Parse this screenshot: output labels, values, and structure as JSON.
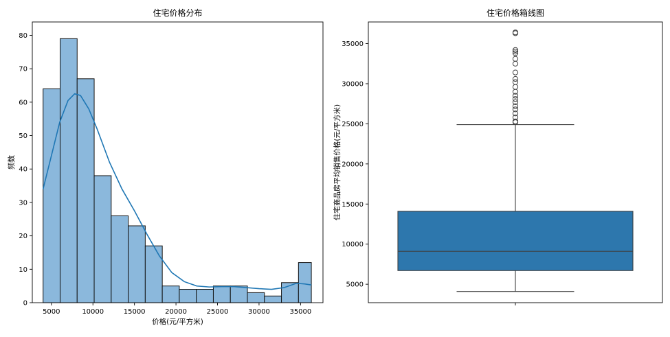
{
  "chart_data": [
    {
      "type": "histogram",
      "title": "住宅价格分布",
      "xlabel": "价格(元/平方米)",
      "ylabel": "频数",
      "xlim": [
        2700,
        37700
      ],
      "ylim": [
        0,
        84
      ],
      "xticks": [
        5000,
        10000,
        15000,
        20000,
        25000,
        30000,
        35000
      ],
      "yticks": [
        0,
        10,
        20,
        30,
        40,
        50,
        60,
        70,
        80
      ],
      "bins": [
        4000,
        6050,
        8100,
        10150,
        12200,
        14250,
        16300,
        18350,
        20400,
        22450,
        24500,
        26550,
        28600,
        30650,
        32700,
        34750,
        36300
      ],
      "counts": [
        64,
        79,
        67,
        38,
        26,
        23,
        17,
        5,
        4,
        4,
        5,
        5,
        3,
        2,
        6,
        12
      ],
      "bar_color": "#8bb8dc",
      "kde": {
        "color": "#1f77b4",
        "x": [
          4000,
          5000,
          6000,
          7000,
          7800,
          8500,
          9500,
          10500,
          12000,
          13500,
          15000,
          16500,
          18000,
          19500,
          21000,
          22500,
          24000,
          25500,
          27000,
          28500,
          30000,
          31500,
          33000,
          34500,
          35500,
          36300
        ],
        "y": [
          34,
          44,
          54,
          60.5,
          62.5,
          62,
          58,
          52,
          42,
          34,
          27.5,
          20.5,
          14,
          9,
          6.3,
          5,
          4.7,
          4.8,
          4.8,
          4.5,
          4.2,
          4,
          4.5,
          5.8,
          5.6,
          5.3
        ]
      }
    },
    {
      "type": "box",
      "title": "住宅价格箱线图",
      "xlabel": "",
      "ylabel": "住宅商品房平均销售价格(元/平方米)",
      "ylim": [
        2700,
        37700
      ],
      "yticks": [
        5000,
        10000,
        15000,
        20000,
        25000,
        30000,
        35000
      ],
      "box_color": "#2d77ad",
      "stats": {
        "min": 4100,
        "q1": 6700,
        "median": 9100,
        "q3": 14100,
        "max": 24900
      },
      "outliers": [
        25200,
        25300,
        25800,
        26300,
        26800,
        27200,
        27700,
        28100,
        28500,
        29000,
        29600,
        30200,
        30600,
        31400,
        32500,
        33100,
        33800,
        34000,
        34200,
        36300,
        36400
      ]
    }
  ]
}
